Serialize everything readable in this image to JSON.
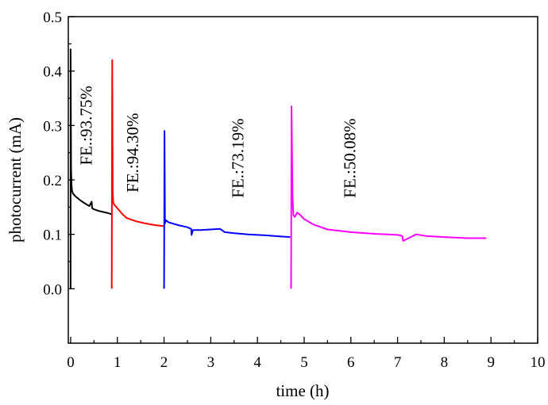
{
  "chart_data": {
    "type": "line",
    "xlabel": "time (h)",
    "ylabel": "photocurrent (mA)",
    "xlim": [
      -0.05,
      10
    ],
    "ylim": [
      -0.1,
      0.5
    ],
    "xticks": [
      "0",
      "1",
      "2",
      "3",
      "4",
      "5",
      "6",
      "7",
      "8",
      "9",
      "10"
    ],
    "yticks": [
      "0.0",
      "0.1",
      "0.2",
      "0.3",
      "0.4",
      "0.5"
    ],
    "grid": false,
    "legend": "none",
    "annotations": [
      {
        "text": "FE.:93.75%",
        "x": 0.45,
        "y": 0.3
      },
      {
        "text": "FE.:94.30%",
        "x": 1.45,
        "y": 0.25
      },
      {
        "text": "FE.:73.19%",
        "x": 3.7,
        "y": 0.24
      },
      {
        "text": "FE.:50.08%",
        "x": 6.1,
        "y": 0.24
      }
    ],
    "series": [
      {
        "color": "#000000",
        "x": [
          0.0,
          0.0,
          0.01,
          0.02,
          0.03,
          0.05,
          0.1,
          0.2,
          0.3,
          0.4,
          0.45,
          0.46,
          0.5,
          0.6,
          0.7,
          0.8,
          0.88
        ],
        "y": [
          0.0,
          0.44,
          0.22,
          0.19,
          0.18,
          0.175,
          0.17,
          0.163,
          0.157,
          0.152,
          0.16,
          0.148,
          0.146,
          0.143,
          0.141,
          0.139,
          0.137
        ]
      },
      {
        "color": "#ff0000",
        "x": [
          0.88,
          0.89,
          0.9,
          0.91,
          0.93,
          1.0,
          1.1,
          1.2,
          1.4,
          1.6,
          1.8,
          2.0
        ],
        "y": [
          0.0,
          0.42,
          0.18,
          0.16,
          0.155,
          0.148,
          0.138,
          0.13,
          0.124,
          0.12,
          0.117,
          0.115
        ]
      },
      {
        "color": "#0000ff",
        "x": [
          2.0,
          2.01,
          2.02,
          2.04,
          2.1,
          2.3,
          2.5,
          2.58,
          2.59,
          2.62,
          2.8,
          3.0,
          3.2,
          3.3,
          3.5,
          3.8,
          4.2,
          4.5,
          4.7
        ],
        "y": [
          0.0,
          0.29,
          0.12,
          0.126,
          0.122,
          0.117,
          0.113,
          0.11,
          0.099,
          0.108,
          0.108,
          0.109,
          0.11,
          0.104,
          0.102,
          0.1,
          0.098,
          0.096,
          0.095
        ]
      },
      {
        "color": "#ff00ff",
        "x": [
          4.72,
          4.73,
          4.75,
          4.77,
          4.8,
          4.85,
          4.9,
          5.0,
          5.2,
          5.5,
          6.0,
          6.5,
          7.0,
          7.1,
          7.12,
          7.4,
          7.6,
          8.0,
          8.5,
          8.9
        ],
        "y": [
          0.0,
          0.335,
          0.17,
          0.135,
          0.132,
          0.14,
          0.137,
          0.128,
          0.118,
          0.109,
          0.104,
          0.101,
          0.099,
          0.097,
          0.088,
          0.1,
          0.097,
          0.095,
          0.093,
          0.093
        ]
      }
    ]
  }
}
